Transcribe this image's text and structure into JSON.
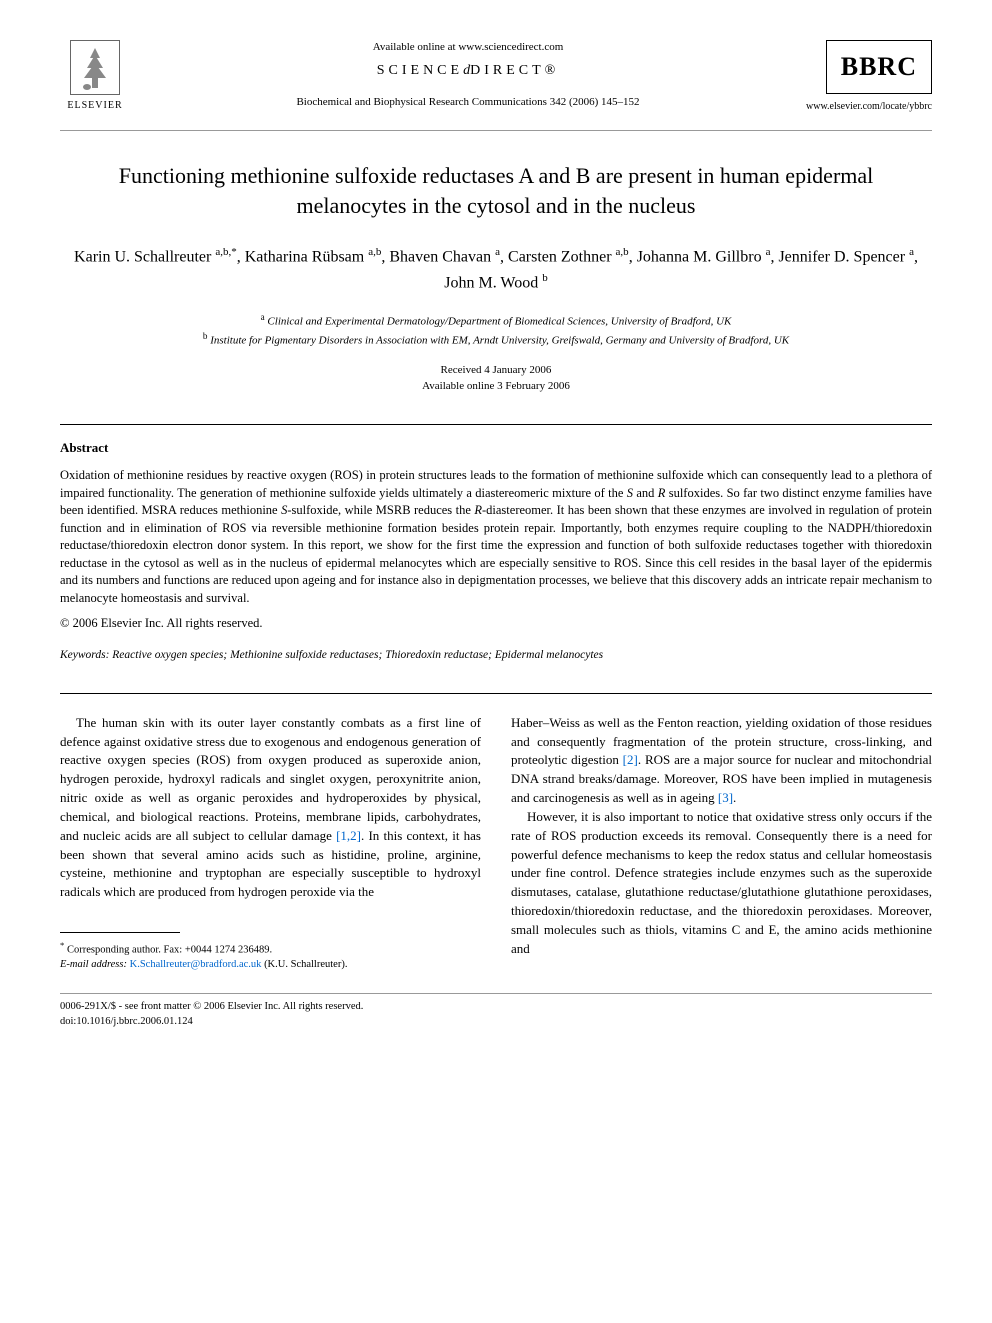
{
  "header": {
    "elsevier_label": "ELSEVIER",
    "available_online": "Available online at www.sciencedirect.com",
    "science_direct_prefix": "SCIENCE",
    "science_direct_mark": "d",
    "science_direct_suffix": "DIRECT®",
    "journal_ref": "Biochemical and Biophysical Research Communications 342 (2006) 145–152",
    "bbrc": "BBRC",
    "journal_url": "www.elsevier.com/locate/ybbrc"
  },
  "title": "Functioning methionine sulfoxide reductases A and B are present in human epidermal melanocytes in the cytosol and in the nucleus",
  "authors_html": "Karin U. Schallreuter <sup>a,b,*</sup>, Katharina Rübsam <sup>a,b</sup>, Bhaven Chavan <sup>a</sup>, Carsten Zothner <sup>a,b</sup>, Johanna M. Gillbro <sup>a</sup>, Jennifer D. Spencer <sup>a</sup>, John M. Wood <sup>b</sup>",
  "affiliations": {
    "a": "Clinical and Experimental Dermatology/Department of Biomedical Sciences, University of Bradford, UK",
    "b": "Institute for Pigmentary Disorders in Association with EM, Arndt University, Greifswald, Germany and University of Bradford, UK"
  },
  "dates": {
    "received": "Received 4 January 2006",
    "online": "Available online 3 February 2006"
  },
  "abstract": {
    "heading": "Abstract",
    "body": "Oxidation of methionine residues by reactive oxygen (ROS) in protein structures leads to the formation of methionine sulfoxide which can consequently lead to a plethora of impaired functionality. The generation of methionine sulfoxide yields ultimately a diastereomeric mixture of the S and R sulfoxides. So far two distinct enzyme families have been identified. MSRA reduces methionine S-sulfoxide, while MSRB reduces the R-diastereomer. It has been shown that these enzymes are involved in regulation of protein function and in elimination of ROS via reversible methionine formation besides protein repair. Importantly, both enzymes require coupling to the NADPH/thioredoxin reductase/thioredoxin electron donor system. In this report, we show for the first time the expression and function of both sulfoxide reductases together with thioredoxin reductase in the cytosol as well as in the nucleus of epidermal melanocytes which are especially sensitive to ROS. Since this cell resides in the basal layer of the epidermis and its numbers and functions are reduced upon ageing and for instance also in depigmentation processes, we believe that this discovery adds an intricate repair mechanism to melanocyte homeostasis and survival.",
    "copyright": "© 2006 Elsevier Inc. All rights reserved."
  },
  "keywords": {
    "label": "Keywords:",
    "text": "Reactive oxygen species; Methionine sulfoxide reductases; Thioredoxin reductase; Epidermal melanocytes"
  },
  "body": {
    "col1_p1": "The human skin with its outer layer constantly combats as a first line of defence against oxidative stress due to exogenous and endogenous generation of reactive oxygen species (ROS) from oxygen produced as superoxide anion, hydrogen peroxide, hydroxyl radicals and singlet oxygen, peroxynitrite anion, nitric oxide as well as organic peroxides and hydroperoxides by physical, chemical, and biological reactions. Proteins, membrane lipids, carbohydrates, and nucleic acids are all subject to cellular damage ",
    "col1_ref1": "[1,2]",
    "col1_p1b": ". In this context, it has been shown that several amino acids such as histidine, proline, arginine, cysteine, methionine and tryptophan are especially susceptible to hydroxyl radicals which are produced from hydrogen peroxide via the",
    "col2_p1a": "Haber–Weiss as well as the Fenton reaction, yielding oxidation of those residues and consequently fragmentation of the protein structure, cross-linking, and proteolytic digestion ",
    "col2_ref1": "[2]",
    "col2_p1b": ". ROS are a major source for nuclear and mitochondrial DNA strand breaks/damage. Moreover, ROS have been implied in mutagenesis and carcinogenesis as well as in ageing ",
    "col2_ref2": "[3]",
    "col2_p1c": ".",
    "col2_p2": "However, it is also important to notice that oxidative stress only occurs if the rate of ROS production exceeds its removal. Consequently there is a need for powerful defence mechanisms to keep the redox status and cellular homeostasis under fine control. Defence strategies include enzymes such as the superoxide dismutases, catalase, glutathione reductase/glutathione glutathione peroxidases, thioredoxin/thioredoxin reductase, and the thioredoxin peroxidases. Moreover, small molecules such as thiols, vitamins C and E, the amino acids methionine and"
  },
  "footnote": {
    "corresponding": "Corresponding author. Fax: +0044 1274 236489.",
    "email_label": "E-mail address:",
    "email": "K.Schallreuter@bradford.ac.uk",
    "email_name": "(K.U. Schallreuter)."
  },
  "footer": {
    "line1": "0006-291X/$ - see front matter © 2006 Elsevier Inc. All rights reserved.",
    "line2": "doi:10.1016/j.bbrc.2006.01.124"
  }
}
